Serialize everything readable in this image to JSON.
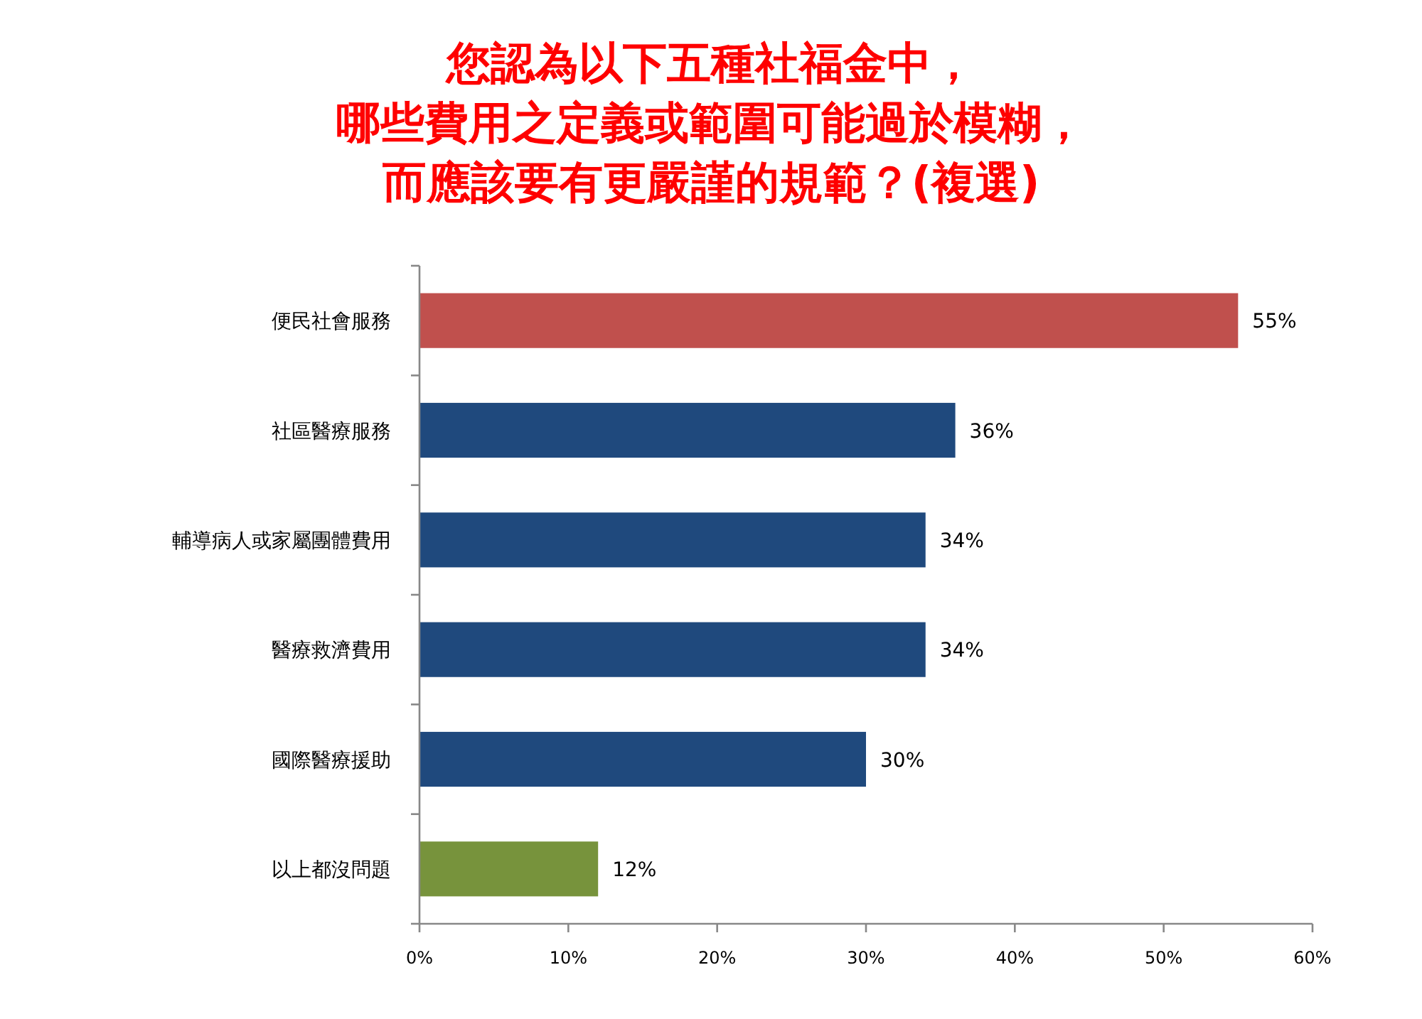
{
  "chart_data": {
    "type": "bar",
    "orientation": "horizontal",
    "title": "您認為以下五種社福金中，哪些費用之定義或範圍可能過於模糊，而應該要有更嚴謹的規範？(複選)",
    "categories": [
      "便民社會服務",
      "社區醫療服務",
      "輔導病人或家屬團體費用",
      "醫療救濟費用",
      "國際醫療援助",
      "以上都沒問題"
    ],
    "values": [
      55,
      36,
      34,
      34,
      30,
      12
    ],
    "value_labels": [
      "55%",
      "36%",
      "34%",
      "34%",
      "30%",
      "12%"
    ],
    "colors": [
      "#c0504d",
      "#1f497d",
      "#1f497d",
      "#1f497d",
      "#1f497d",
      "#77933c"
    ],
    "xlim": [
      0,
      60
    ],
    "xticks": [
      {
        "value": 0,
        "label": "0%"
      },
      {
        "value": 10,
        "label": "10%"
      },
      {
        "value": 20,
        "label": "20%"
      },
      {
        "value": 30,
        "label": "30%"
      },
      {
        "value": 40,
        "label": "40%"
      },
      {
        "value": 50,
        "label": "50%"
      },
      {
        "value": 60,
        "label": "60%"
      }
    ],
    "grid": false
  }
}
